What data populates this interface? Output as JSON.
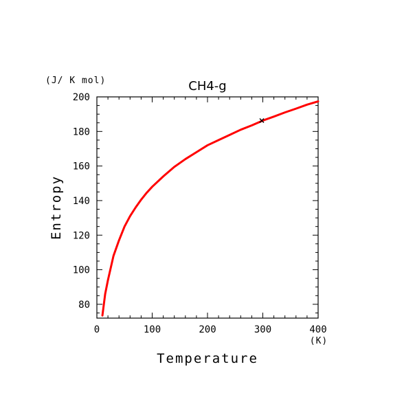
{
  "chart_data": {
    "type": "line",
    "title": "CH4-g",
    "xlabel": "Temperature",
    "ylabel": "Entropy",
    "x_unit": "(K)",
    "y_unit": "(J/ K mol)",
    "xlim": [
      0,
      400
    ],
    "ylim": [
      72,
      200
    ],
    "x_ticks": [
      0,
      100,
      200,
      300,
      400
    ],
    "y_ticks": [
      80,
      100,
      120,
      140,
      160,
      180,
      200
    ],
    "x_tick_labels": [
      "0",
      "100",
      "200",
      "300",
      "400"
    ],
    "y_tick_labels": [
      "80",
      "100",
      "120",
      "140",
      "160",
      "180",
      "200"
    ],
    "grid": false,
    "series": [
      {
        "color": "#ff0000",
        "x": [
          10,
          15,
          20,
          30,
          40,
          50,
          60,
          70,
          80,
          90,
          100,
          120,
          140,
          160,
          180,
          200,
          220,
          240,
          260,
          280,
          300,
          320,
          340,
          360,
          380,
          400
        ],
        "y": [
          73.5,
          86,
          94,
          108,
          117,
          125,
          131,
          136,
          140.5,
          144.5,
          148,
          154,
          159.5,
          164,
          168,
          172,
          175,
          178,
          181,
          183.5,
          186.3,
          188.6,
          191,
          193.2,
          195.5,
          197.4
        ]
      }
    ],
    "markers": [
      {
        "x": 298.15,
        "y": 186.3,
        "symbol": "x"
      }
    ]
  }
}
